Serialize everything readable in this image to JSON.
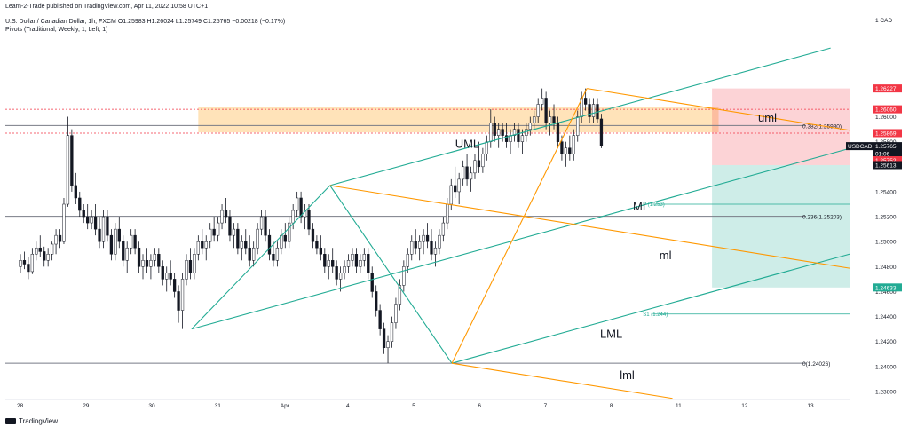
{
  "header": {
    "publisher_line": "Learn-2-Trade published on TradingView.com, Apr 11, 2022 10:58 UTC+1",
    "symbol_line": "U.S. Dollar / Canadian Dollar, 1h, FXCM  O1.25983  H1.26024  L1.25749  C1.25765  −0.00218 (−0.17%)",
    "indicator_line": "Pivots (Traditional, Weekly, 1, Left, 1)"
  },
  "footer": {
    "brand": "TradingView"
  },
  "chart_data": {
    "type": "candlestick",
    "symbol": "USDCAD",
    "timeframe": "1h",
    "currency": "1 CAD",
    "ylim": [
      1.2375,
      1.2685
    ],
    "y_ticks": [
      "1.26000",
      "1.25800",
      "1.25600",
      "1.25400",
      "1.25200",
      "1.25000",
      "1.24800",
      "1.24600",
      "1.24400",
      "1.24200",
      "1.24000",
      "1.23800"
    ],
    "x_ticks": [
      {
        "label": "28",
        "x": 0.0
      },
      {
        "label": "29",
        "x": 1.0
      },
      {
        "label": "30",
        "x": 2.0
      },
      {
        "label": "31",
        "x": 3.0
      },
      {
        "label": "Apr",
        "x": 4.0
      },
      {
        "label": "4",
        "x": 5.0
      },
      {
        "label": "5",
        "x": 6.0
      },
      {
        "label": "6",
        "x": 7.0
      },
      {
        "label": "7",
        "x": 8.0
      },
      {
        "label": "8",
        "x": 9.0
      },
      {
        "label": "11",
        "x": 10.0
      },
      {
        "label": "12",
        "x": 11.0
      },
      {
        "label": "13",
        "x": 12.0
      }
    ],
    "price_tags": [
      {
        "label": "1.26227",
        "value": 1.26227,
        "bg": "#f23645",
        "fg": "#ffffff"
      },
      {
        "label": "1.26060",
        "value": 1.2606,
        "bg": "#f23645",
        "fg": "#ffffff"
      },
      {
        "label": "1.25869",
        "value": 1.25869,
        "bg": "#f23645",
        "fg": "#ffffff"
      },
      {
        "label": "1.25765",
        "value": 1.25765,
        "bg": "#131722",
        "fg": "#ffffff"
      },
      {
        "label": "01:06",
        "value": 1.25705,
        "bg": "#131722",
        "fg": "#ffffff"
      },
      {
        "label": "1.25752",
        "value": 1.25652,
        "bg": "#f23645",
        "fg": "#ffffff"
      },
      {
        "label": "1.25613",
        "value": 1.25613,
        "bg": "#131722",
        "fg": "#ffffff"
      },
      {
        "label": "1.24633",
        "value": 1.24633,
        "bg": "#22ab94",
        "fg": "#ffffff"
      }
    ],
    "symbol_tag": "USDCAD",
    "fib_levels": [
      {
        "label": "0.382(1.25930)",
        "value": 1.2593
      },
      {
        "label": "0.236(1.25203)",
        "value": 1.25203
      },
      {
        "label": "0(1.24026)",
        "value": 1.24026
      }
    ],
    "pivot_levels": [
      {
        "label": "P (1.253)",
        "value": 1.253
      },
      {
        "label": "S1 (1.244)",
        "value": 1.2442
      }
    ],
    "supply_zone": {
      "from": 1.25875,
      "to": 1.2608
    },
    "position": {
      "entry": 1.25613,
      "stop": 1.26227,
      "target": 1.24633,
      "x_from": 10.5,
      "x_to": 12.6
    },
    "pitchfork_labels": [
      "UML",
      "ML",
      "LML",
      "uml",
      "ml",
      "lml"
    ],
    "candles": [
      [
        0.0,
        1.248,
        1.249,
        1.2475,
        1.2485
      ],
      [
        0.06,
        1.2485,
        1.2492,
        1.2478,
        1.2482
      ],
      [
        0.12,
        1.2482,
        1.2488,
        1.247,
        1.2476
      ],
      [
        0.18,
        1.2476,
        1.2495,
        1.2474,
        1.249
      ],
      [
        0.24,
        1.249,
        1.25,
        1.2485,
        1.2495
      ],
      [
        0.3,
        1.2495,
        1.2505,
        1.2488,
        1.2492
      ],
      [
        0.36,
        1.2492,
        1.2496,
        1.248,
        1.2485
      ],
      [
        0.42,
        1.2485,
        1.2495,
        1.248,
        1.249
      ],
      [
        0.48,
        1.249,
        1.25,
        1.2485,
        1.2498
      ],
      [
        0.54,
        1.2498,
        1.251,
        1.249,
        1.2505
      ],
      [
        0.6,
        1.2505,
        1.251,
        1.2495,
        1.25
      ],
      [
        0.66,
        1.25,
        1.2535,
        1.2498,
        1.253
      ],
      [
        0.72,
        1.253,
        1.26,
        1.2528,
        1.2585
      ],
      [
        0.78,
        1.2585,
        1.259,
        1.254,
        1.2545
      ],
      [
        0.84,
        1.2545,
        1.2555,
        1.253,
        1.2535
      ],
      [
        0.9,
        1.2535,
        1.254,
        1.252,
        1.2525
      ],
      [
        0.96,
        1.2525,
        1.253,
        1.2515,
        1.252
      ],
      [
        1.02,
        1.252,
        1.253,
        1.251,
        1.2515
      ],
      [
        1.08,
        1.2515,
        1.2525,
        1.251,
        1.252
      ],
      [
        1.14,
        1.252,
        1.253,
        1.2505,
        1.251
      ],
      [
        1.2,
        1.251,
        1.252,
        1.2495,
        1.25
      ],
      [
        1.26,
        1.25,
        1.2525,
        1.2495,
        1.252
      ],
      [
        1.32,
        1.252,
        1.2525,
        1.25,
        1.2505
      ],
      [
        1.38,
        1.2505,
        1.251,
        1.2485,
        1.249
      ],
      [
        1.44,
        1.249,
        1.2515,
        1.2485,
        1.251
      ],
      [
        1.5,
        1.251,
        1.252,
        1.2495,
        1.25
      ],
      [
        1.56,
        1.25,
        1.2505,
        1.248,
        1.2485
      ],
      [
        1.62,
        1.2485,
        1.25,
        1.2475,
        1.2495
      ],
      [
        1.68,
        1.2495,
        1.251,
        1.249,
        1.2505
      ],
      [
        1.74,
        1.2505,
        1.251,
        1.249,
        1.2495
      ],
      [
        1.8,
        1.2495,
        1.25,
        1.2475,
        1.248
      ],
      [
        1.86,
        1.248,
        1.249,
        1.247,
        1.2485
      ],
      [
        1.92,
        1.2485,
        1.2495,
        1.2475,
        1.248
      ],
      [
        1.98,
        1.248,
        1.249,
        1.247,
        1.2485
      ],
      [
        2.04,
        1.2485,
        1.2495,
        1.248,
        1.249
      ],
      [
        2.1,
        1.249,
        1.2495,
        1.2475,
        1.248
      ],
      [
        2.16,
        1.248,
        1.2485,
        1.2465,
        1.247
      ],
      [
        2.22,
        1.247,
        1.248,
        1.246,
        1.2475
      ],
      [
        2.28,
        1.2475,
        1.2485,
        1.2465,
        1.247
      ],
      [
        2.34,
        1.247,
        1.2475,
        1.2455,
        1.246
      ],
      [
        2.4,
        1.246,
        1.2465,
        1.2435,
        1.2445
      ],
      [
        2.46,
        1.2445,
        1.2475,
        1.243,
        1.247
      ],
      [
        2.52,
        1.247,
        1.249,
        1.2465,
        1.2485
      ],
      [
        2.58,
        1.2485,
        1.2495,
        1.247,
        1.2475
      ],
      [
        2.64,
        1.2475,
        1.2495,
        1.247,
        1.249
      ],
      [
        2.7,
        1.249,
        1.2505,
        1.2485,
        1.25
      ],
      [
        2.76,
        1.25,
        1.251,
        1.249,
        1.2495
      ],
      [
        2.82,
        1.2495,
        1.2505,
        1.2485,
        1.25
      ],
      [
        2.88,
        1.25,
        1.2515,
        1.2495,
        1.251
      ],
      [
        2.94,
        1.251,
        1.252,
        1.25,
        1.2505
      ],
      [
        3.0,
        1.2505,
        1.252,
        1.25,
        1.2515
      ],
      [
        3.06,
        1.2515,
        1.253,
        1.251,
        1.2525
      ],
      [
        3.12,
        1.2525,
        1.2535,
        1.2515,
        1.252
      ],
      [
        3.18,
        1.252,
        1.2525,
        1.25,
        1.2505
      ],
      [
        3.24,
        1.2505,
        1.2515,
        1.2495,
        1.251
      ],
      [
        3.3,
        1.251,
        1.2515,
        1.249,
        1.2495
      ],
      [
        3.36,
        1.2495,
        1.2505,
        1.2485,
        1.25
      ],
      [
        3.42,
        1.25,
        1.251,
        1.249,
        1.2495
      ],
      [
        3.48,
        1.2495,
        1.2505,
        1.248,
        1.2485
      ],
      [
        3.54,
        1.2485,
        1.25,
        1.248,
        1.2495
      ],
      [
        3.6,
        1.2495,
        1.2515,
        1.249,
        1.251
      ],
      [
        3.66,
        1.251,
        1.2525,
        1.2505,
        1.252
      ],
      [
        3.72,
        1.252,
        1.2525,
        1.25,
        1.2505
      ],
      [
        3.78,
        1.2505,
        1.251,
        1.2485,
        1.249
      ],
      [
        3.84,
        1.249,
        1.25,
        1.248,
        1.2485
      ],
      [
        3.9,
        1.2485,
        1.25,
        1.248,
        1.2495
      ],
      [
        3.96,
        1.2495,
        1.251,
        1.249,
        1.2505
      ],
      [
        4.02,
        1.2505,
        1.2515,
        1.2495,
        1.25
      ],
      [
        4.08,
        1.25,
        1.252,
        1.2495,
        1.2515
      ],
      [
        4.14,
        1.2515,
        1.253,
        1.251,
        1.2525
      ],
      [
        4.2,
        1.2525,
        1.254,
        1.252,
        1.2535
      ],
      [
        4.26,
        1.2535,
        1.254,
        1.2515,
        1.252
      ],
      [
        4.32,
        1.252,
        1.253,
        1.251,
        1.2525
      ],
      [
        4.38,
        1.2525,
        1.253,
        1.2505,
        1.251
      ],
      [
        4.44,
        1.251,
        1.2515,
        1.2495,
        1.25
      ],
      [
        4.5,
        1.25,
        1.2505,
        1.249,
        1.2495
      ],
      [
        4.56,
        1.2495,
        1.2505,
        1.2485,
        1.249
      ],
      [
        4.62,
        1.249,
        1.2495,
        1.2475,
        1.248
      ],
      [
        4.68,
        1.248,
        1.249,
        1.247,
        1.2485
      ],
      [
        4.74,
        1.2485,
        1.2495,
        1.2475,
        1.248
      ],
      [
        4.8,
        1.248,
        1.2485,
        1.2465,
        1.247
      ],
      [
        4.86,
        1.247,
        1.248,
        1.246,
        1.2475
      ],
      [
        4.92,
        1.2475,
        1.2485,
        1.247,
        1.248
      ],
      [
        4.98,
        1.248,
        1.249,
        1.2475,
        1.2485
      ],
      [
        5.04,
        1.2485,
        1.2495,
        1.248,
        1.249
      ],
      [
        5.1,
        1.249,
        1.2495,
        1.2475,
        1.248
      ],
      [
        5.16,
        1.248,
        1.249,
        1.2475,
        1.2485
      ],
      [
        5.22,
        1.2485,
        1.2495,
        1.248,
        1.249
      ],
      [
        5.28,
        1.249,
        1.2495,
        1.247,
        1.2475
      ],
      [
        5.34,
        1.2475,
        1.248,
        1.2455,
        1.246
      ],
      [
        5.4,
        1.246,
        1.2465,
        1.244,
        1.2445
      ],
      [
        5.46,
        1.2445,
        1.245,
        1.2425,
        1.243
      ],
      [
        5.52,
        1.243,
        1.2435,
        1.241,
        1.2415
      ],
      [
        5.58,
        1.2415,
        1.2425,
        1.24026,
        1.242
      ],
      [
        5.64,
        1.242,
        1.244,
        1.2415,
        1.2435
      ],
      [
        5.7,
        1.2435,
        1.2455,
        1.243,
        1.245
      ],
      [
        5.76,
        1.245,
        1.247,
        1.2445,
        1.2465
      ],
      [
        5.82,
        1.2465,
        1.2485,
        1.246,
        1.248
      ],
      [
        5.88,
        1.248,
        1.2495,
        1.2475,
        1.249
      ],
      [
        5.94,
        1.249,
        1.2505,
        1.2485,
        1.25
      ],
      [
        6.0,
        1.25,
        1.251,
        1.249,
        1.2495
      ],
      [
        6.06,
        1.2495,
        1.2505,
        1.2485,
        1.25
      ],
      [
        6.12,
        1.25,
        1.251,
        1.249,
        1.2505
      ],
      [
        6.18,
        1.2505,
        1.2515,
        1.2495,
        1.25
      ],
      [
        6.24,
        1.25,
        1.251,
        1.2485,
        1.249
      ],
      [
        6.3,
        1.249,
        1.25,
        1.248,
        1.2495
      ],
      [
        6.36,
        1.2495,
        1.251,
        1.249,
        1.2505
      ],
      [
        6.42,
        1.2505,
        1.252,
        1.25,
        1.2515
      ],
      [
        6.48,
        1.2515,
        1.2535,
        1.251,
        1.253
      ],
      [
        6.54,
        1.253,
        1.255,
        1.2525,
        1.2545
      ],
      [
        6.6,
        1.2545,
        1.256,
        1.2535,
        1.254
      ],
      [
        6.66,
        1.254,
        1.2555,
        1.253,
        1.255
      ],
      [
        6.72,
        1.255,
        1.2565,
        1.2545,
        1.256
      ],
      [
        6.78,
        1.256,
        1.257,
        1.2545,
        1.255
      ],
      [
        6.84,
        1.255,
        1.256,
        1.254,
        1.2555
      ],
      [
        6.9,
        1.2555,
        1.257,
        1.255,
        1.2565
      ],
      [
        6.96,
        1.2565,
        1.258,
        1.2555,
        1.256
      ],
      [
        7.02,
        1.256,
        1.2575,
        1.2555,
        1.257
      ],
      [
        7.08,
        1.257,
        1.2585,
        1.2565,
        1.258
      ],
      [
        7.14,
        1.258,
        1.2606,
        1.2575,
        1.2595
      ],
      [
        7.2,
        1.2595,
        1.26,
        1.258,
        1.2585
      ],
      [
        7.26,
        1.2585,
        1.2595,
        1.2575,
        1.259
      ],
      [
        7.32,
        1.259,
        1.2595,
        1.258,
        1.2585
      ],
      [
        7.38,
        1.2585,
        1.2595,
        1.2575,
        1.258
      ],
      [
        7.44,
        1.258,
        1.259,
        1.257,
        1.2585
      ],
      [
        7.5,
        1.2585,
        1.2595,
        1.258,
        1.259
      ],
      [
        7.56,
        1.259,
        1.2595,
        1.2575,
        1.258
      ],
      [
        7.62,
        1.258,
        1.259,
        1.257,
        1.2585
      ],
      [
        7.68,
        1.2585,
        1.2595,
        1.258,
        1.259
      ],
      [
        7.74,
        1.259,
        1.26,
        1.2585,
        1.2595
      ],
      [
        7.8,
        1.2595,
        1.2605,
        1.259,
        1.26
      ],
      [
        7.86,
        1.26,
        1.2615,
        1.2595,
        1.261
      ],
      [
        7.92,
        1.261,
        1.26227,
        1.2605,
        1.2615
      ],
      [
        7.98,
        1.2615,
        1.262,
        1.259,
        1.2595
      ],
      [
        8.04,
        1.2595,
        1.2605,
        1.2585,
        1.26
      ],
      [
        8.1,
        1.26,
        1.261,
        1.259,
        1.2595
      ],
      [
        8.16,
        1.2595,
        1.26,
        1.2575,
        1.258
      ],
      [
        8.22,
        1.258,
        1.2585,
        1.2565,
        1.257
      ],
      [
        8.28,
        1.257,
        1.258,
        1.256,
        1.2575
      ],
      [
        8.34,
        1.2575,
        1.2585,
        1.2565,
        1.257
      ],
      [
        8.4,
        1.257,
        1.259,
        1.2565,
        1.2585
      ],
      [
        8.46,
        1.2585,
        1.2605,
        1.258,
        1.26
      ],
      [
        8.52,
        1.26,
        1.262,
        1.2595,
        1.2615
      ],
      [
        8.58,
        1.2615,
        1.26227,
        1.2605,
        1.261
      ],
      [
        8.64,
        1.261,
        1.2615,
        1.2595,
        1.26
      ],
      [
        8.7,
        1.26,
        1.2615,
        1.2595,
        1.261
      ],
      [
        8.76,
        1.261,
        1.2615,
        1.2595,
        1.25983
      ],
      [
        8.82,
        1.25983,
        1.26024,
        1.25749,
        1.25765
      ]
    ]
  }
}
